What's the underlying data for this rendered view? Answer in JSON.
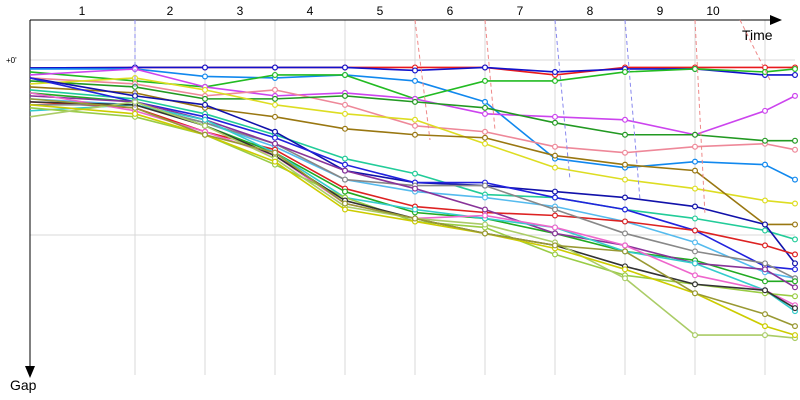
{
  "chart_data": {
    "type": "line",
    "title": "",
    "xlabel": "Time",
    "ylabel": "Gap",
    "y_zero_label": "+0'",
    "x": [
      0,
      1,
      2,
      3,
      4,
      5,
      6,
      7,
      8,
      9,
      10,
      11
    ],
    "lap_labels": [
      "1",
      "2",
      "3",
      "4",
      "5",
      "6",
      "7",
      "8",
      "9",
      "10"
    ],
    "y_scale": "gap units, 0 = leader (top)",
    "ylim": [
      -2,
      100
    ],
    "grid": true,
    "legend": "none",
    "series": [
      {
        "color": "#e8191c",
        "values": [
          0,
          0.5,
          0.5,
          0.5,
          0.5,
          0.5,
          0.5,
          3,
          0.5,
          0.5,
          0.5,
          0.5
        ]
      },
      {
        "color": "#1111cc",
        "values": [
          0,
          0.5,
          0.5,
          0.5,
          0.5,
          1.5,
          0.5,
          2,
          1,
          1,
          3,
          3
        ]
      },
      {
        "color": "#1188ee",
        "values": [
          1,
          1,
          3.5,
          4,
          3,
          5,
          12,
          31,
          34,
          32,
          33,
          38
        ]
      },
      {
        "color": "#22bb22",
        "values": [
          2,
          5,
          7,
          3,
          3,
          11,
          5,
          5,
          2,
          1,
          2,
          1
        ]
      },
      {
        "color": "#cc44ee",
        "values": [
          3,
          1,
          7,
          10,
          9,
          11,
          16,
          17,
          18,
          23,
          15,
          10
        ]
      },
      {
        "color": "#ee8899",
        "values": [
          4,
          6,
          10,
          8,
          13,
          20,
          22,
          27,
          29,
          27,
          26,
          28
        ]
      },
      {
        "color": "#229922",
        "values": [
          5,
          7,
          11,
          11,
          10,
          12,
          14,
          19,
          23,
          23,
          25,
          25
        ]
      },
      {
        "color": "#dddd22",
        "values": [
          6,
          4,
          8,
          13,
          16,
          18,
          26,
          34,
          38,
          41,
          45,
          46
        ]
      },
      {
        "color": "#997711",
        "values": [
          7,
          9,
          14,
          17,
          21,
          23,
          24,
          30,
          33,
          35,
          53,
          53
        ]
      },
      {
        "color": "#22cc99",
        "values": [
          8,
          11,
          16,
          23,
          31,
          36,
          43,
          44,
          48,
          51,
          55,
          58
        ]
      },
      {
        "color": "#1111aa",
        "values": [
          4,
          10,
          13,
          22,
          35,
          39,
          40,
          42,
          44,
          47,
          53,
          66
        ]
      },
      {
        "color": "#2222dd",
        "values": [
          4,
          12,
          17,
          24,
          33,
          39,
          39,
          44,
          48,
          55,
          67,
          68
        ]
      },
      {
        "color": "#55bbee",
        "values": [
          11,
          13,
          19,
          27,
          38,
          42,
          44,
          47,
          52,
          59,
          69,
          71
        ]
      },
      {
        "color": "#dd2222",
        "values": [
          12,
          14,
          22,
          28,
          41,
          47,
          49,
          50,
          52,
          55,
          60,
          63
        ]
      },
      {
        "color": "#888888",
        "values": [
          13,
          13,
          19,
          26,
          38,
          40,
          40,
          48,
          56,
          62,
          66,
          71
        ]
      },
      {
        "color": "#22aa22",
        "values": [
          9,
          12,
          20,
          29,
          42,
          49,
          51,
          56,
          62,
          65,
          72,
          72
        ]
      },
      {
        "color": "#883399",
        "values": [
          10,
          12,
          18,
          26,
          35,
          41,
          48,
          56,
          60,
          66,
          68,
          74
        ]
      },
      {
        "color": "#33cccc",
        "values": [
          15,
          13,
          18,
          29,
          44,
          48,
          51,
          54,
          62,
          66,
          75,
          82
        ]
      },
      {
        "color": "#ee66cc",
        "values": [
          9,
          15,
          22,
          30,
          46,
          51,
          50,
          54,
          60,
          70,
          75,
          80
        ]
      },
      {
        "color": "#99cc44",
        "values": [
          14,
          17,
          23,
          33,
          44,
          52,
          54,
          63,
          70,
          73,
          76,
          77
        ]
      },
      {
        "color": "#333333",
        "values": [
          12,
          13,
          20,
          30,
          45,
          51,
          56,
          60,
          67,
          73,
          75,
          81
        ]
      },
      {
        "color": "#aacc66",
        "values": [
          17,
          12,
          20,
          31,
          47,
          51,
          53,
          59,
          71,
          90,
          90,
          91
        ]
      },
      {
        "color": "#cccc00",
        "values": [
          13,
          16,
          23,
          32,
          48,
          52,
          56,
          61,
          68,
          76,
          87,
          90
        ]
      },
      {
        "color": "#999933",
        "values": [
          11,
          14,
          23,
          29,
          46,
          51,
          56,
          60,
          62,
          76,
          83,
          87
        ]
      }
    ]
  }
}
